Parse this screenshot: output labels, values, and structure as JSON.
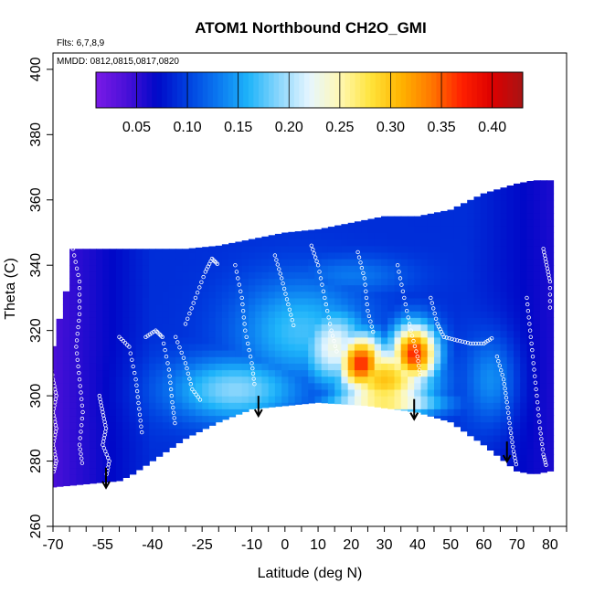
{
  "chart_data": {
    "type": "heatmap",
    "title": "ATOM1 Northbound CH2O_GMI",
    "annotation_lines": [
      "Flts: 6,7,8,9",
      "MMDD: 0812,0815,0817,0820"
    ],
    "xlabel": "Latitude (deg N)",
    "ylabel": "Theta (C)",
    "xlim": [
      -70,
      85
    ],
    "ylim": [
      260,
      405
    ],
    "x_ticks": [
      -70,
      -55,
      -40,
      -25,
      -10,
      0,
      10,
      20,
      30,
      40,
      50,
      60,
      70,
      80
    ],
    "y_ticks": [
      260,
      280,
      300,
      320,
      340,
      360,
      380,
      400
    ],
    "colorbar": {
      "range": [
        0.01,
        0.43
      ],
      "ticks": [
        0.05,
        0.1,
        0.15,
        0.2,
        0.25,
        0.3,
        0.35,
        0.4
      ],
      "tick_labels": [
        "0.05",
        "0.10",
        "0.15",
        "0.20",
        "0.25",
        "0.30",
        "0.35",
        "0.40"
      ],
      "stops": [
        "#7a1ae6",
        "#4a10d8",
        "#0008c8",
        "#0040e0",
        "#0a78f0",
        "#1eb4fa",
        "#8ad6fc",
        "#e6f6ff",
        "#fff8b4",
        "#ffe43c",
        "#ffb400",
        "#ff7800",
        "#ff2000",
        "#dc0000",
        "#a81414"
      ]
    },
    "colors": {
      "blank": "#ffffff",
      "sample_dots": "#ffffff",
      "arrows": "#000000"
    },
    "domain": {
      "bottom_edge": [
        [
          -71,
          272
        ],
        [
          -50,
          274
        ],
        [
          -46,
          276
        ],
        [
          -30,
          287
        ],
        [
          -20,
          292
        ],
        [
          -10,
          296
        ],
        [
          10,
          298
        ],
        [
          25,
          297
        ],
        [
          40,
          295
        ],
        [
          50,
          292
        ],
        [
          60,
          285
        ],
        [
          70,
          277
        ],
        [
          75,
          276
        ],
        [
          80,
          277
        ]
      ],
      "top_edge": [
        [
          -71,
          311
        ],
        [
          -66,
          332
        ],
        [
          -64,
          345
        ],
        [
          -55,
          345
        ],
        [
          -40,
          345
        ],
        [
          -30,
          345
        ],
        [
          -20,
          346
        ],
        [
          -10,
          348
        ],
        [
          0,
          350
        ],
        [
          10,
          351
        ],
        [
          20,
          353
        ],
        [
          30,
          355
        ],
        [
          40,
          355
        ],
        [
          50,
          357
        ],
        [
          60,
          362
        ],
        [
          70,
          365
        ],
        [
          75,
          366
        ]
      ]
    },
    "hotspots": [
      {
        "lat": 23,
        "theta": 310,
        "value": 0.37,
        "spread_lat": 7,
        "spread_theta": 9
      },
      {
        "lat": 39,
        "theta": 313,
        "value": 0.37,
        "spread_lat": 7,
        "spread_theta": 9
      },
      {
        "lat": 30,
        "theta": 305,
        "value": 0.3,
        "spread_lat": 14,
        "spread_theta": 11
      },
      {
        "lat": 30,
        "theta": 298,
        "value": 0.28,
        "spread_lat": 16,
        "spread_theta": 4
      },
      {
        "lat": 15,
        "theta": 315,
        "value": 0.23,
        "spread_lat": 10,
        "spread_theta": 12
      },
      {
        "lat": -15,
        "theta": 302,
        "value": 0.19,
        "spread_lat": 20,
        "spread_theta": 10
      },
      {
        "lat": 5,
        "theta": 320,
        "value": 0.17,
        "spread_lat": 20,
        "spread_theta": 16
      },
      {
        "lat": 20,
        "theta": 337,
        "value": 0.13,
        "spread_lat": 18,
        "spread_theta": 6
      },
      {
        "lat": 62,
        "theta": 305,
        "value": 0.14,
        "spread_lat": 8,
        "spread_theta": 14
      }
    ],
    "background_value": {
      "south": 0.04,
      "mid": 0.09,
      "north": 0.06
    },
    "arrows_at": [
      {
        "lat": -54,
        "theta": 278
      },
      {
        "lat": -8,
        "theta": 300
      },
      {
        "lat": 39,
        "theta": 299
      },
      {
        "lat": 67,
        "theta": 286
      }
    ],
    "sample_tracks": [
      {
        "points": [
          [
            -71,
            312
          ],
          [
            -70,
            305
          ],
          [
            -69,
            300
          ],
          [
            -70,
            295
          ],
          [
            -69,
            290
          ],
          [
            -70,
            285
          ],
          [
            -69,
            280
          ],
          [
            -70,
            276
          ]
        ]
      },
      {
        "points": [
          [
            -64,
            345
          ],
          [
            -62,
            335
          ],
          [
            -62,
            325
          ],
          [
            -63,
            315
          ],
          [
            -62,
            305
          ],
          [
            -61,
            295
          ],
          [
            -62,
            285
          ],
          [
            -61,
            278
          ]
        ]
      },
      {
        "points": [
          [
            -56,
            300
          ],
          [
            -55,
            295
          ],
          [
            -54,
            290
          ],
          [
            -55,
            285
          ],
          [
            -53,
            280
          ],
          [
            -54,
            275
          ]
        ]
      },
      {
        "points": [
          [
            -50,
            318
          ],
          [
            -47,
            315
          ],
          [
            -45,
            305
          ],
          [
            -44,
            296
          ],
          [
            -43,
            287
          ]
        ]
      },
      {
        "points": [
          [
            -42,
            318
          ],
          [
            -39,
            320
          ],
          [
            -37,
            318
          ],
          [
            -35,
            308
          ],
          [
            -34,
            298
          ],
          [
            -33,
            290
          ]
        ]
      },
      {
        "points": [
          [
            -30,
            322
          ],
          [
            -27,
            330
          ],
          [
            -24,
            338
          ],
          [
            -22,
            342
          ],
          [
            -20,
            340
          ]
        ]
      },
      {
        "points": [
          [
            -33,
            318
          ],
          [
            -30,
            310
          ],
          [
            -28,
            302
          ],
          [
            -25,
            298
          ]
        ]
      },
      {
        "points": [
          [
            -15,
            340
          ],
          [
            -13,
            330
          ],
          [
            -12,
            320
          ],
          [
            -10,
            310
          ],
          [
            -9,
            302
          ]
        ]
      },
      {
        "points": [
          [
            -3,
            343
          ],
          [
            -1,
            336
          ],
          [
            1,
            328
          ],
          [
            3,
            320
          ]
        ]
      },
      {
        "points": [
          [
            8,
            346
          ],
          [
            10,
            340
          ],
          [
            12,
            330
          ],
          [
            14,
            320
          ],
          [
            16,
            312
          ]
        ]
      },
      {
        "points": [
          [
            22,
            344
          ],
          [
            24,
            336
          ],
          [
            25,
            326
          ],
          [
            27,
            318
          ]
        ]
      },
      {
        "points": [
          [
            34,
            340
          ],
          [
            36,
            330
          ],
          [
            38,
            320
          ],
          [
            40,
            312
          ],
          [
            41,
            305
          ]
        ]
      },
      {
        "points": [
          [
            44,
            330
          ],
          [
            46,
            322
          ],
          [
            48,
            318
          ],
          [
            52,
            317
          ],
          [
            56,
            316
          ],
          [
            60,
            316
          ],
          [
            63,
            318
          ]
        ]
      },
      {
        "points": [
          [
            64,
            312
          ],
          [
            66,
            305
          ],
          [
            67,
            298
          ],
          [
            68,
            290
          ],
          [
            69,
            283
          ],
          [
            70,
            278
          ]
        ]
      },
      {
        "points": [
          [
            73,
            330
          ],
          [
            74,
            320
          ],
          [
            75,
            310
          ],
          [
            76,
            300
          ],
          [
            77,
            290
          ],
          [
            78,
            282
          ],
          [
            79,
            278
          ]
        ]
      },
      {
        "points": [
          [
            78,
            345
          ],
          [
            79,
            340
          ],
          [
            80,
            335
          ],
          [
            80,
            325
          ]
        ]
      }
    ]
  }
}
